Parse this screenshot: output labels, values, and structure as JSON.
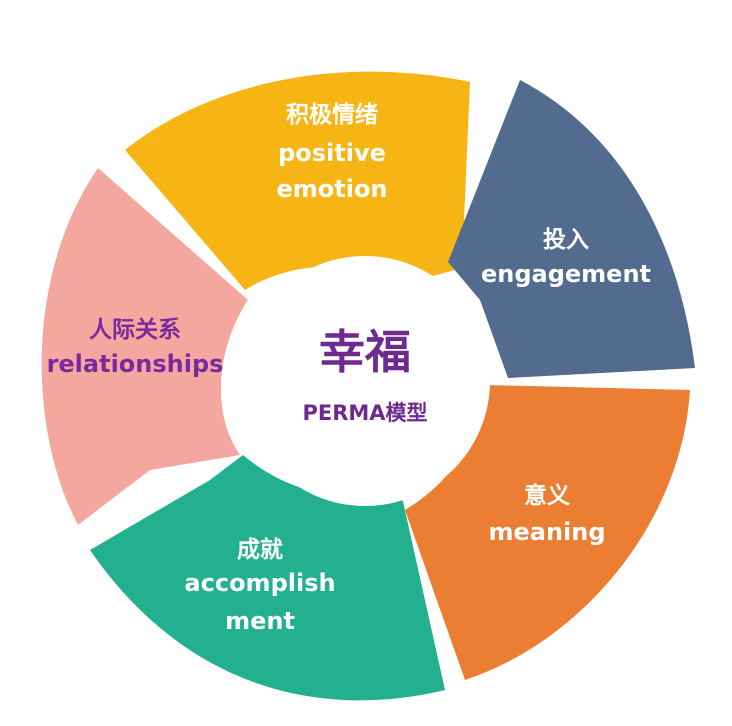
{
  "center": {
    "title": "幸福",
    "subtitle": "PERMA模型"
  },
  "segments": {
    "positive_emotion": {
      "zh": "积极情绪",
      "en_line1": "positive",
      "en_line2": "emotion",
      "color": "#F7B515"
    },
    "engagement": {
      "zh": "投入",
      "en": "engagement",
      "color": "#526B8E"
    },
    "meaning": {
      "zh": "意义",
      "en": "meaning",
      "color": "#EC7E33"
    },
    "accomplishment": {
      "zh": "成就",
      "en_line1": "accomplish",
      "en_line2": "ment",
      "color": "#22B08E"
    },
    "relationships": {
      "zh": "人际关系",
      "en": "relationships",
      "color": "#F4A79F"
    }
  },
  "colors": {
    "center_fill": "#ffffff",
    "center_text": "#6e2a8e",
    "label_text": "#ffffff",
    "relationships_text": "#7a2a9c"
  }
}
